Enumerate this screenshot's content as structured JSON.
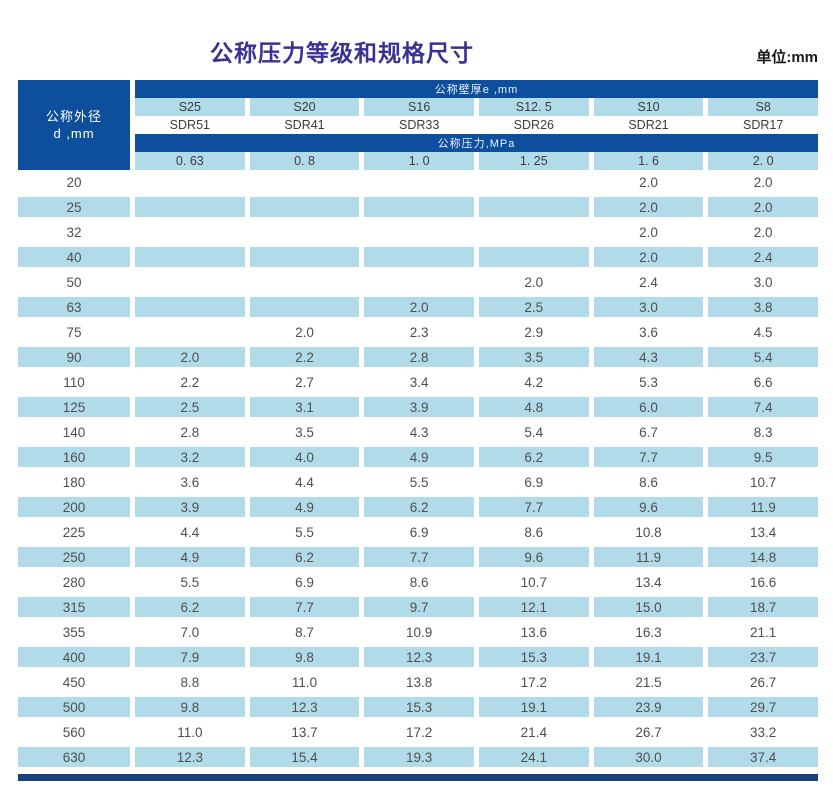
{
  "page": {
    "title": "公称压力等级和规格尺寸",
    "unit_label": "单位:mm"
  },
  "colors": {
    "header_dark_blue": "#0d4f9c",
    "row_light_blue": "#b2dbe9",
    "bottom_bar_navy": "#16407e",
    "title_purple": "#3b3191",
    "data_text_gray": "#4f4f4f"
  },
  "table": {
    "row_header": {
      "line1": "公称外径",
      "line2": "d ,mm"
    },
    "wall_thickness_label": "公称壁厚e ,mm",
    "pressure_label": "公称压力,MPa",
    "s_series": [
      "S25",
      "S20",
      "S16",
      "S12. 5",
      "S10",
      "S8"
    ],
    "sdr_series": [
      "SDR51",
      "SDR41",
      "SDR33",
      "SDR26",
      "SDR21",
      "SDR17"
    ],
    "pressure_values": [
      "0. 63",
      "0. 8",
      "1. 0",
      "1. 25",
      "1. 6",
      "2. 0"
    ],
    "rows": [
      {
        "d": "20",
        "values": [
          "",
          "",
          "",
          "",
          "2.0",
          "2.0"
        ]
      },
      {
        "d": "25",
        "values": [
          "",
          "",
          "",
          "",
          "2.0",
          "2.0"
        ]
      },
      {
        "d": "32",
        "values": [
          "",
          "",
          "",
          "",
          "2.0",
          "2.0"
        ]
      },
      {
        "d": "40",
        "values": [
          "",
          "",
          "",
          "",
          "2.0",
          "2.4"
        ]
      },
      {
        "d": "50",
        "values": [
          "",
          "",
          "",
          "2.0",
          "2.4",
          "3.0"
        ]
      },
      {
        "d": "63",
        "values": [
          "",
          "",
          "2.0",
          "2.5",
          "3.0",
          "3.8"
        ]
      },
      {
        "d": "75",
        "values": [
          "",
          "2.0",
          "2.3",
          "2.9",
          "3.6",
          "4.5"
        ]
      },
      {
        "d": "90",
        "values": [
          "2.0",
          "2.2",
          "2.8",
          "3.5",
          "4.3",
          "5.4"
        ]
      },
      {
        "d": "110",
        "values": [
          "2.2",
          "2.7",
          "3.4",
          "4.2",
          "5.3",
          "6.6"
        ]
      },
      {
        "d": "125",
        "values": [
          "2.5",
          "3.1",
          "3.9",
          "4.8",
          "6.0",
          "7.4"
        ]
      },
      {
        "d": "140",
        "values": [
          "2.8",
          "3.5",
          "4.3",
          "5.4",
          "6.7",
          "8.3"
        ]
      },
      {
        "d": "160",
        "values": [
          "3.2",
          "4.0",
          "4.9",
          "6.2",
          "7.7",
          "9.5"
        ]
      },
      {
        "d": "180",
        "values": [
          "3.6",
          "4.4",
          "5.5",
          "6.9",
          "8.6",
          "10.7"
        ]
      },
      {
        "d": "200",
        "values": [
          "3.9",
          "4.9",
          "6.2",
          "7.7",
          "9.6",
          "11.9"
        ]
      },
      {
        "d": "225",
        "values": [
          "4.4",
          "5.5",
          "6.9",
          "8.6",
          "10.8",
          "13.4"
        ]
      },
      {
        "d": "250",
        "values": [
          "4.9",
          "6.2",
          "7.7",
          "9.6",
          "11.9",
          "14.8"
        ]
      },
      {
        "d": "280",
        "values": [
          "5.5",
          "6.9",
          "8.6",
          "10.7",
          "13.4",
          "16.6"
        ]
      },
      {
        "d": "315",
        "values": [
          "6.2",
          "7.7",
          "9.7",
          "12.1",
          "15.0",
          "18.7"
        ]
      },
      {
        "d": "355",
        "values": [
          "7.0",
          "8.7",
          "10.9",
          "13.6",
          "16.3",
          "21.1"
        ]
      },
      {
        "d": "400",
        "values": [
          "7.9",
          "9.8",
          "12.3",
          "15.3",
          "19.1",
          "23.7"
        ]
      },
      {
        "d": "450",
        "values": [
          "8.8",
          "11.0",
          "13.8",
          "17.2",
          "21.5",
          "26.7"
        ]
      },
      {
        "d": "500",
        "values": [
          "9.8",
          "12.3",
          "15.3",
          "19.1",
          "23.9",
          "29.7"
        ]
      },
      {
        "d": "560",
        "values": [
          "11.0",
          "13.7",
          "17.2",
          "21.4",
          "26.7",
          "33.2"
        ]
      },
      {
        "d": "630",
        "values": [
          "12.3",
          "15.4",
          "19.3",
          "24.1",
          "30.0",
          "37.4"
        ]
      }
    ]
  }
}
